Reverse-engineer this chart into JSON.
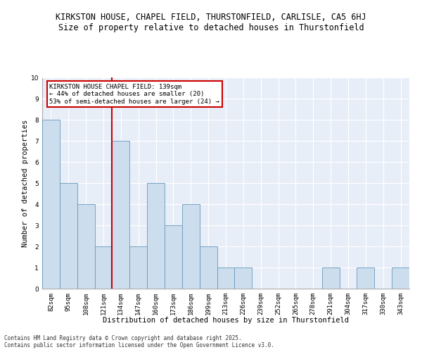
{
  "title1": "KIRKSTON HOUSE, CHAPEL FIELD, THURSTONFIELD, CARLISLE, CA5 6HJ",
  "title2": "Size of property relative to detached houses in Thurstonfield",
  "xlabel": "Distribution of detached houses by size in Thurstonfield",
  "ylabel": "Number of detached properties",
  "categories": [
    "82sqm",
    "95sqm",
    "108sqm",
    "121sqm",
    "134sqm",
    "147sqm",
    "160sqm",
    "173sqm",
    "186sqm",
    "199sqm",
    "213sqm",
    "226sqm",
    "239sqm",
    "252sqm",
    "265sqm",
    "278sqm",
    "291sqm",
    "304sqm",
    "317sqm",
    "330sqm",
    "343sqm"
  ],
  "values": [
    8,
    5,
    4,
    2,
    7,
    2,
    5,
    3,
    4,
    2,
    1,
    1,
    0,
    0,
    0,
    0,
    1,
    0,
    1,
    0,
    1
  ],
  "bar_color": "#ccdded",
  "bar_edge_color": "#6699bb",
  "vline_index": 4,
  "vline_color": "#cc0000",
  "annotation_text": "KIRKSTON HOUSE CHAPEL FIELD: 139sqm\n← 44% of detached houses are smaller (20)\n53% of semi-detached houses are larger (24) →",
  "annotation_box_color": "#ffffff",
  "annotation_box_edge": "#cc0000",
  "ylim": [
    0,
    10
  ],
  "yticks": [
    0,
    1,
    2,
    3,
    4,
    5,
    6,
    7,
    8,
    9,
    10
  ],
  "background_color": "#e8eef8",
  "grid_color": "#ffffff",
  "footer": "Contains HM Land Registry data © Crown copyright and database right 2025.\nContains public sector information licensed under the Open Government Licence v3.0.",
  "title_fontsize": 8.5,
  "subtitle_fontsize": 8.5,
  "tick_fontsize": 6.5,
  "label_fontsize": 7.5,
  "annotation_fontsize": 6.5
}
